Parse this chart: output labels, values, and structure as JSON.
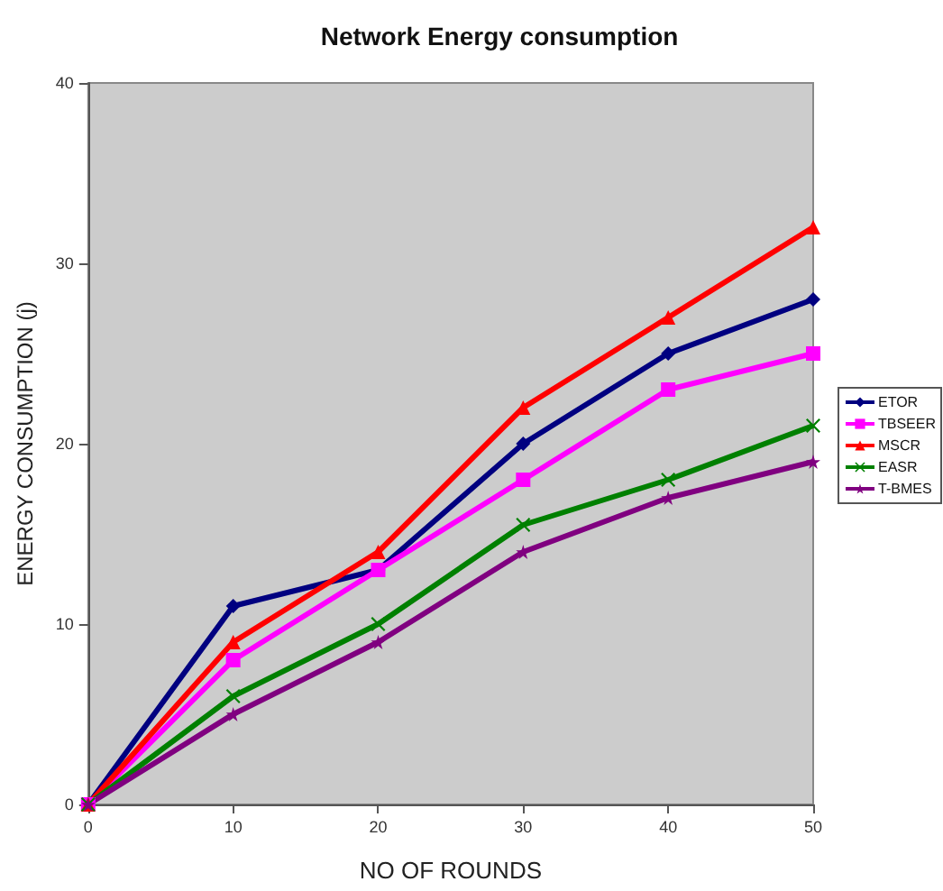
{
  "chart_data": {
    "type": "line",
    "title": "Network Energy consumption",
    "xlabel": "NO OF ROUNDS",
    "ylabel": "ENERGY CONSUMPTION (j)",
    "x": [
      0,
      10,
      20,
      30,
      40,
      50
    ],
    "series": [
      {
        "name": "ETOR",
        "color": "#000080",
        "marker": "diamond",
        "values": [
          0,
          11,
          13,
          20,
          25,
          28
        ]
      },
      {
        "name": "TBSEER",
        "color": "#ff00ff",
        "marker": "square",
        "values": [
          0,
          8,
          13,
          18,
          23,
          25
        ]
      },
      {
        "name": "MSCR",
        "color": "#ff0000",
        "marker": "triangle",
        "values": [
          0,
          9,
          14,
          22,
          27,
          32
        ]
      },
      {
        "name": "EASR",
        "color": "#008000",
        "marker": "cross",
        "values": [
          0,
          6,
          10,
          15.5,
          18,
          21
        ]
      },
      {
        "name": "T-BMES",
        "color": "#800080",
        "marker": "star",
        "values": [
          0,
          5,
          9,
          14,
          17,
          19
        ]
      }
    ],
    "xlim": [
      0,
      50
    ],
    "xticks": [
      0,
      10,
      20,
      30,
      40,
      50
    ],
    "ylim": [
      0,
      40
    ],
    "yticks": [
      0,
      10,
      20,
      30,
      40
    ],
    "grid": false,
    "legend": "right",
    "line_style": "solid"
  }
}
